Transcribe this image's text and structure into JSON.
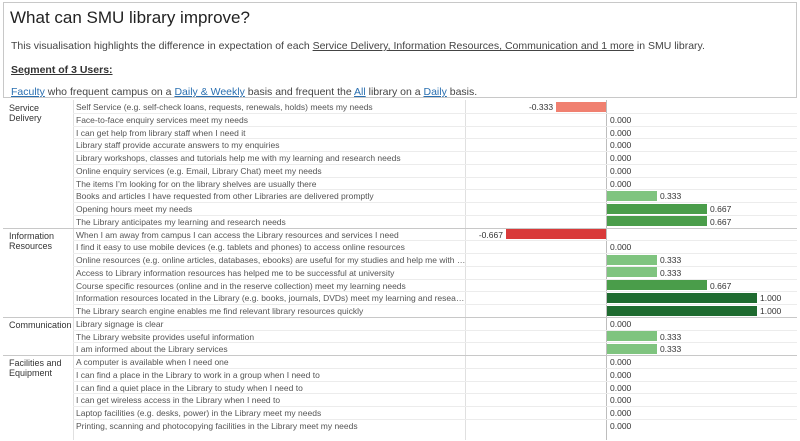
{
  "header": {
    "title": "What can SMU library improve?",
    "desc_prefix": "This visualisation highlights the difference in expectation of each ",
    "desc_link": "Service Delivery, Information Resources, Communication and 1 more",
    "desc_suffix": " in SMU library.",
    "segment_label": "Segment of 3 Users:",
    "faculty_link": "Faculty",
    "faculty_text1": " who frequent campus on a ",
    "faculty_freq": "Daily & Weekly",
    "faculty_text2": " basis and frequent the ",
    "faculty_lib": "All",
    "faculty_text3": " library on a ",
    "faculty_lib_freq": "Daily",
    "faculty_text4": " basis."
  },
  "colors": {
    "neg_light": "#f08070",
    "neg_dark": "#d93a3a",
    "pos_light": "#7fc47f",
    "pos_mid": "#4a9d4a",
    "pos_dark": "#1f6b30"
  },
  "chart_data": {
    "type": "bar",
    "orientation": "horizontal",
    "xlim": [
      -1,
      1
    ],
    "groups": [
      {
        "name": "Service Delivery",
        "items": [
          {
            "label": "Self Service (e.g. self-check loans, requests, renewals, holds) meets my needs",
            "value": -0.333,
            "display": "-0.333"
          },
          {
            "label": "Face-to-face enquiry services meet my needs",
            "value": 0.0,
            "display": "0.000"
          },
          {
            "label": "I can get help from library staff when I need it",
            "value": 0.0,
            "display": "0.000"
          },
          {
            "label": "Library staff provide accurate answers to my enquiries",
            "value": 0.0,
            "display": "0.000"
          },
          {
            "label": "Library workshops, classes and tutorials help me with my learning and research needs",
            "value": 0.0,
            "display": "0.000"
          },
          {
            "label": "Online enquiry services (e.g. Email, Library Chat) meet my needs",
            "value": 0.0,
            "display": "0.000"
          },
          {
            "label": "The items I’m looking for on the library shelves are usually there",
            "value": 0.0,
            "display": "0.000"
          },
          {
            "label": "Books and articles I have requested from other Libraries are delivered promptly",
            "value": 0.333,
            "display": "0.333"
          },
          {
            "label": "Opening hours meet my needs",
            "value": 0.667,
            "display": "0.667"
          },
          {
            "label": "The Library anticipates my learning and research needs",
            "value": 0.667,
            "display": "0.667"
          }
        ]
      },
      {
        "name": "Information Resources",
        "items": [
          {
            "label": "When I am away from campus I can access the Library resources and services I need",
            "value": -0.667,
            "display": "-0.667"
          },
          {
            "label": "I find it easy to use mobile devices (e.g. tablets and phones) to access online resources",
            "value": 0.0,
            "display": "0.000"
          },
          {
            "label": "Online resources (e.g. online articles, databases, ebooks) are useful for my studies and help me with my le..",
            "value": 0.333,
            "display": "0.333"
          },
          {
            "label": "Access to Library information resources has helped me to be successful at university",
            "value": 0.333,
            "display": "0.333"
          },
          {
            "label": "Course specific resources (online and in the reserve collection) meet my learning needs",
            "value": 0.667,
            "display": "0.667"
          },
          {
            "label": "Information resources located in the Library (e.g. books, journals, DVDs) meet my learning and research ne..",
            "value": 1.0,
            "display": "1.000"
          },
          {
            "label": "The Library search engine enables me find relevant library resources quickly",
            "value": 1.0,
            "display": "1.000"
          }
        ]
      },
      {
        "name": "Communication",
        "items": [
          {
            "label": "Library signage is clear",
            "value": 0.0,
            "display": "0.000"
          },
          {
            "label": "The Library website provides useful information",
            "value": 0.333,
            "display": "0.333"
          },
          {
            "label": "I am informed about the Library services",
            "value": 0.333,
            "display": "0.333"
          }
        ]
      },
      {
        "name": "Facilities and Equipment",
        "items": [
          {
            "label": "A computer is available when I need one",
            "value": 0.0,
            "display": "0.000"
          },
          {
            "label": "I can find a place in the Library to work in a group when I need to",
            "value": 0.0,
            "display": "0.000"
          },
          {
            "label": "I can find a quiet place in the Library to study when I need to",
            "value": 0.0,
            "display": "0.000"
          },
          {
            "label": "I can get wireless access in the Library when I need to",
            "value": 0.0,
            "display": "0.000"
          },
          {
            "label": "Laptop facilities (e.g. desks, power) in the Library meet my needs",
            "value": 0.0,
            "display": "0.000"
          },
          {
            "label": "Printing, scanning and photocopying facilities in the Library meet my needs",
            "value": 0.0,
            "display": "0.000"
          }
        ]
      }
    ]
  }
}
